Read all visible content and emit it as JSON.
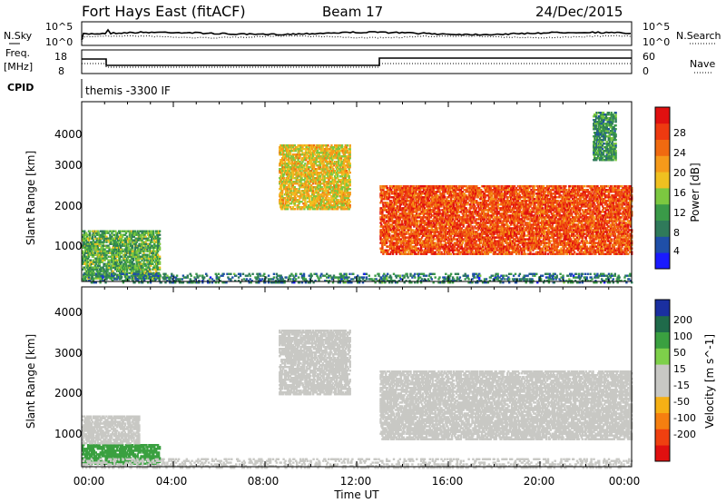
{
  "header": {
    "site": "Fort Hays East (fitACF)",
    "beam": "Beam 17",
    "date": "24/Dec/2015"
  },
  "noise_panel": {
    "left_label": "N.Sky",
    "right_label": "N.Search",
    "left_ticks": [
      "10^5",
      "10^0"
    ],
    "right_ticks": [
      "10^5",
      "10^0"
    ]
  },
  "freq_panel": {
    "left_label_1": "Freq.",
    "left_label_2": "[MHz]",
    "right_label": "Nave",
    "left_ticks": [
      "18",
      "8"
    ],
    "right_ticks": [
      "60",
      "0"
    ]
  },
  "cpid": {
    "label": "CPID",
    "value": "themis -3300 IF"
  },
  "colors": {
    "line": "#000000",
    "grey_scatter": "#c8c8c4",
    "power_scale": [
      "#1a1aff",
      "#1f4fa8",
      "#2f7a5a",
      "#3a9a48",
      "#7cc840",
      "#f0c020",
      "#f59a1a",
      "#f06a10",
      "#ee3a10",
      "#e01010"
    ],
    "velocity_scale": [
      "#1a2fa0",
      "#1f6a4a",
      "#3aa040",
      "#7ed04a",
      "#c8c8c4",
      "#c8c8c4",
      "#f5b015",
      "#f57f10",
      "#ef4010",
      "#e01010"
    ]
  },
  "chart_data": [
    {
      "type": "heatmap",
      "panel": "power",
      "ylabel": "Slant Range [km]",
      "yticks": [
        "1000",
        "2000",
        "3000",
        "4000"
      ],
      "ylim": [
        200,
        4600
      ],
      "xlim": [
        0,
        24
      ],
      "colorbar": {
        "label": "Power [dB]",
        "range": [
          0,
          32
        ],
        "ticks": [
          "4",
          "8",
          "12",
          "16",
          "20",
          "24",
          "28"
        ]
      },
      "echo_regions": [
        {
          "t_start": 0.0,
          "t_end": 3.4,
          "range_start": 300,
          "range_end": 1500,
          "power": 12
        },
        {
          "t_start": 8.6,
          "t_end": 11.7,
          "range_start": 2000,
          "range_end": 3600,
          "power": 18
        },
        {
          "t_start": 13.0,
          "t_end": 24.0,
          "range_start": 900,
          "range_end": 2600,
          "power": 26
        },
        {
          "t_start": 22.3,
          "t_end": 23.3,
          "range_start": 3200,
          "range_end": 4400,
          "power": 10
        },
        {
          "t_start": 0.0,
          "t_end": 24.0,
          "range_start": 200,
          "range_end": 450,
          "power": 8
        }
      ]
    },
    {
      "type": "heatmap",
      "panel": "velocity",
      "ylabel": "Slant Range [km]",
      "yticks": [
        "1000",
        "2000",
        "3000",
        "4000"
      ],
      "ylim": [
        200,
        4600
      ],
      "xlim": [
        0,
        24
      ],
      "xlabel": "Time UT",
      "xticks": [
        "00:00",
        "04:00",
        "08:00",
        "12:00",
        "16:00",
        "20:00",
        "00:00"
      ],
      "colorbar": {
        "label": "Velocity [m s^-1]",
        "ticks": [
          "200",
          "100",
          "50",
          "15",
          "-15",
          "-50",
          "-100",
          "-200"
        ]
      },
      "echo_regions": [
        {
          "t_start": 0.0,
          "t_end": 3.4,
          "range_start": 300,
          "range_end": 800,
          "velocity": 60
        },
        {
          "t_start": 0.0,
          "t_end": 2.5,
          "range_start": 800,
          "range_end": 1500,
          "velocity": 0
        },
        {
          "t_start": 8.6,
          "t_end": 11.7,
          "range_start": 2000,
          "range_end": 3600,
          "velocity": 0
        },
        {
          "t_start": 13.0,
          "t_end": 24.0,
          "range_start": 900,
          "range_end": 2600,
          "velocity": 0
        },
        {
          "t_start": 0.0,
          "t_end": 24.0,
          "range_start": 200,
          "range_end": 450,
          "velocity": -40
        }
      ]
    }
  ]
}
